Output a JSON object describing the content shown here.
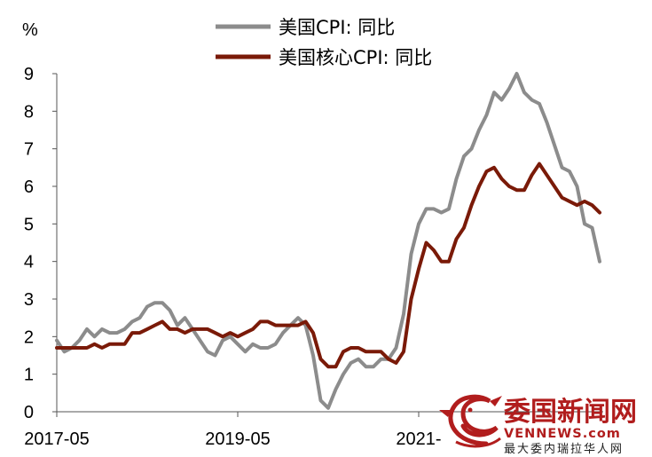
{
  "chart_data": {
    "type": "line",
    "unit": "%",
    "ylim": [
      0,
      9
    ],
    "yticks": [
      "0",
      "1",
      "2",
      "3",
      "4",
      "5",
      "6",
      "7",
      "8",
      "9"
    ],
    "xtick_labels": [
      "2017-05",
      "2019-05",
      "2021-"
    ],
    "x_start": "2017-05",
    "legend_position": "top-center",
    "grid": false,
    "series": [
      {
        "name": "美国CPI: 同比",
        "color": "#8c8c8c",
        "values": [
          1.9,
          1.6,
          1.7,
          1.9,
          2.2,
          2.0,
          2.2,
          2.1,
          2.1,
          2.2,
          2.4,
          2.5,
          2.8,
          2.9,
          2.9,
          2.7,
          2.3,
          2.5,
          2.2,
          1.9,
          1.6,
          1.5,
          1.9,
          2.0,
          1.8,
          1.6,
          1.8,
          1.7,
          1.7,
          1.8,
          2.1,
          2.3,
          2.5,
          2.3,
          1.5,
          0.3,
          0.1,
          0.6,
          1.0,
          1.3,
          1.4,
          1.2,
          1.2,
          1.4,
          1.4,
          1.7,
          2.6,
          4.2,
          5.0,
          5.4,
          5.4,
          5.3,
          5.4,
          6.2,
          6.8,
          7.0,
          7.5,
          7.9,
          8.5,
          8.3,
          8.6,
          9.0,
          8.5,
          8.3,
          8.2,
          7.7,
          7.1,
          6.5,
          6.4,
          6.0,
          5.0,
          4.9,
          4.0
        ]
      },
      {
        "name": "美国核心CPI: 同比",
        "color": "#7a1a08",
        "values": [
          1.7,
          1.7,
          1.7,
          1.7,
          1.7,
          1.8,
          1.7,
          1.8,
          1.8,
          1.8,
          2.1,
          2.1,
          2.2,
          2.3,
          2.4,
          2.2,
          2.2,
          2.1,
          2.2,
          2.2,
          2.2,
          2.1,
          2.0,
          2.1,
          2.0,
          2.1,
          2.2,
          2.4,
          2.4,
          2.3,
          2.3,
          2.3,
          2.3,
          2.4,
          2.1,
          1.4,
          1.2,
          1.2,
          1.6,
          1.7,
          1.7,
          1.6,
          1.6,
          1.6,
          1.4,
          1.3,
          1.6,
          3.0,
          3.8,
          4.5,
          4.3,
          4.0,
          4.0,
          4.6,
          4.9,
          5.5,
          6.0,
          6.4,
          6.5,
          6.2,
          6.0,
          5.9,
          5.9,
          6.3,
          6.6,
          6.3,
          6.0,
          5.7,
          5.6,
          5.5,
          5.6,
          5.5,
          5.3
        ]
      }
    ]
  },
  "watermark": {
    "title": "委国新闻网",
    "url": "VENNEWS.com",
    "subtitle": "最大委内瑞拉华人网",
    "logo_icon": "dragon-logo-icon",
    "color": "#b11d1d"
  }
}
